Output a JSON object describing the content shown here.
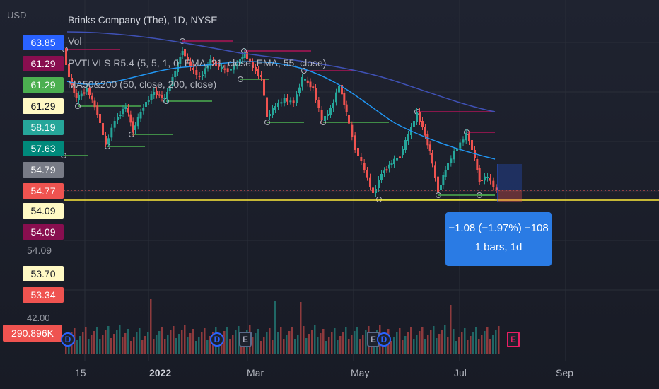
{
  "currency": "USD",
  "legend": {
    "title": "Brinks Company (The), 1D, NYSE",
    "vol": "Vol",
    "pvtlvls": "PVTLVLS R5.4 (5, 5, 1, 0, EMA, 21, close, EMA, 55, close)",
    "ma": "MA50&200 (50, close, 200, close)"
  },
  "price_axis": {
    "tags": [
      {
        "label": "63.85",
        "bg": "#2962ff",
        "fg": "#ffffff"
      },
      {
        "label": "61.29",
        "bg": "#880e4f",
        "fg": "#ffffff"
      },
      {
        "label": "61.29",
        "bg": "#4caf50",
        "fg": "#ffffff"
      },
      {
        "label": "61.29",
        "bg": "#fff9c4",
        "fg": "#131722"
      },
      {
        "label": "58.19",
        "bg": "#26a69a",
        "fg": "#ffffff"
      },
      {
        "label": "57.63",
        "bg": "#00897b",
        "fg": "#ffffff"
      },
      {
        "label": "54.79",
        "bg": "#787b86",
        "fg": "#ffffff"
      },
      {
        "label": "54.77",
        "bg": "#ef5350",
        "fg": "#ffffff"
      },
      {
        "label": "54.09",
        "bg": "#fff9c4",
        "fg": "#131722"
      },
      {
        "label": "54.09",
        "bg": "#880e4f",
        "fg": "#ffffff"
      }
    ],
    "plain_label": "54.09",
    "lower_tags": [
      {
        "label": "53.70",
        "bg": "#fff9c4",
        "fg": "#131722"
      },
      {
        "label": "53.34",
        "bg": "#ef5350",
        "fg": "#ffffff"
      }
    ],
    "volume_scale": "42.00",
    "volume_tag": "290.896K"
  },
  "measure_tooltip": {
    "line1": "−1.08 (−1.97%) −108",
    "line2": "1 bars, 1d"
  },
  "time_axis": [
    "15",
    "2022",
    "Mar",
    "May",
    "Jul",
    "Sep"
  ],
  "events": [
    {
      "type": "dividend",
      "label": "D"
    },
    {
      "type": "dividend",
      "label": "D"
    },
    {
      "type": "earnings",
      "label": "E"
    },
    {
      "type": "earnings",
      "label": "E"
    },
    {
      "type": "dividend",
      "label": "D"
    },
    {
      "type": "earnings-upcoming",
      "label": "E"
    }
  ],
  "colors": {
    "up": "#26a69a",
    "down": "#ef5350",
    "ma50": "#2196f3",
    "ma200": "#3f51b5",
    "pivot_high": "#ad1457",
    "pivot_low": "#4caf50",
    "current_price_line": "#ffeb3b"
  }
}
